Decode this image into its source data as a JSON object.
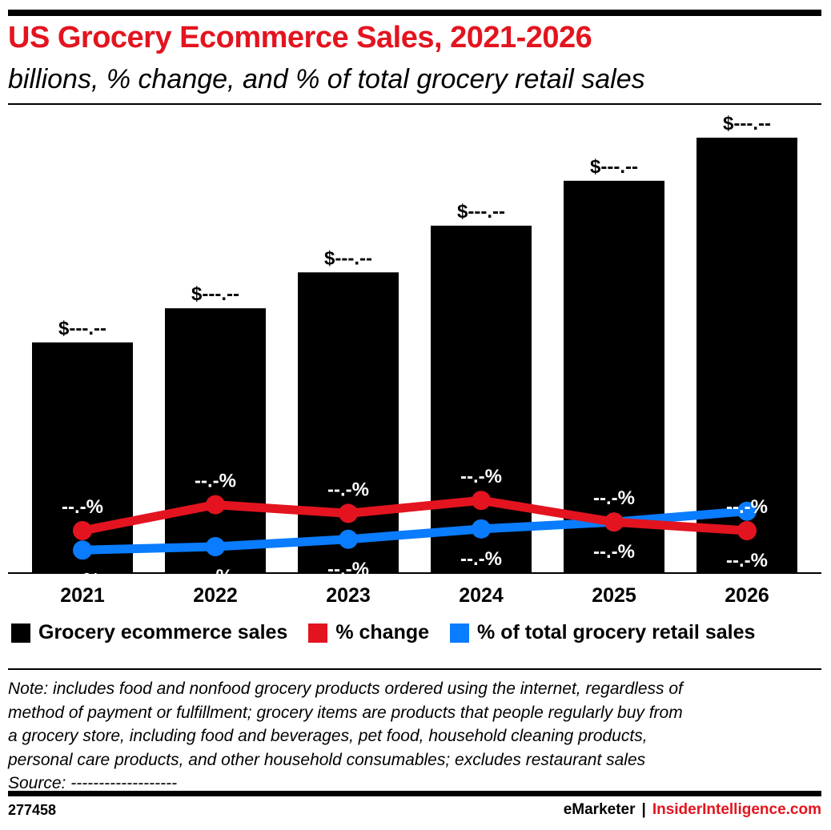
{
  "title": "US Grocery Ecommerce Sales, 2021-2026",
  "subtitle": "billions, % change, and % of total grocery retail sales",
  "colors": {
    "title": "#e3141f",
    "bars": "#000000",
    "change": "#e3141f",
    "share": "#0a7cff"
  },
  "chart_data": {
    "type": "bar",
    "categories": [
      "2021",
      "2022",
      "2023",
      "2024",
      "2025",
      "2026"
    ],
    "series": [
      {
        "name": "Grocery ecommerce sales",
        "type": "bar",
        "color": "#000000",
        "values": [
          128,
          147,
          167,
          193,
          218,
          242
        ],
        "labels": [
          "$---.--",
          "$---.--",
          "$---.--",
          "$---.--",
          "$---.--",
          "$---.--"
        ]
      },
      {
        "name": "% change",
        "type": "line",
        "color": "#e3141f",
        "values": [
          17,
          23,
          21,
          24,
          19,
          17
        ],
        "labels": [
          "--.-%",
          "--.-%",
          "--.-%",
          "--.-%",
          "--.-%",
          "--.-%"
        ]
      },
      {
        "name": "% of total grocery retail sales",
        "type": "line",
        "color": "#0a7cff",
        "values": [
          12.5,
          13.3,
          15.0,
          17.4,
          19.0,
          21.5
        ],
        "labels": [
          "-.-%",
          "-.-%",
          "--.-%",
          "--.-%",
          "--.-%",
          "--.-%"
        ]
      }
    ],
    "legend_position": "bottom",
    "grid": false
  },
  "legend": [
    {
      "label": "Grocery ecommerce sales",
      "color": "#000000"
    },
    {
      "label": "% change",
      "color": "#e3141f"
    },
    {
      "label": "% of total grocery retail sales",
      "color": "#0a7cff"
    }
  ],
  "note_lines": [
    "Note: includes food and nonfood grocery products ordered using the internet, regardless of",
    "method of payment or fulfillment; grocery items are products that people regularly buy from",
    "a grocery store, including food and beverages, pet food, household cleaning products,",
    "personal care products, and other household consumables; excludes restaurant sales",
    "Source: -------------------"
  ],
  "footer": {
    "chart_id": "277458",
    "brand_left": "eMarketer",
    "separator": "|",
    "brand_right": "InsiderIntelligence.com"
  }
}
